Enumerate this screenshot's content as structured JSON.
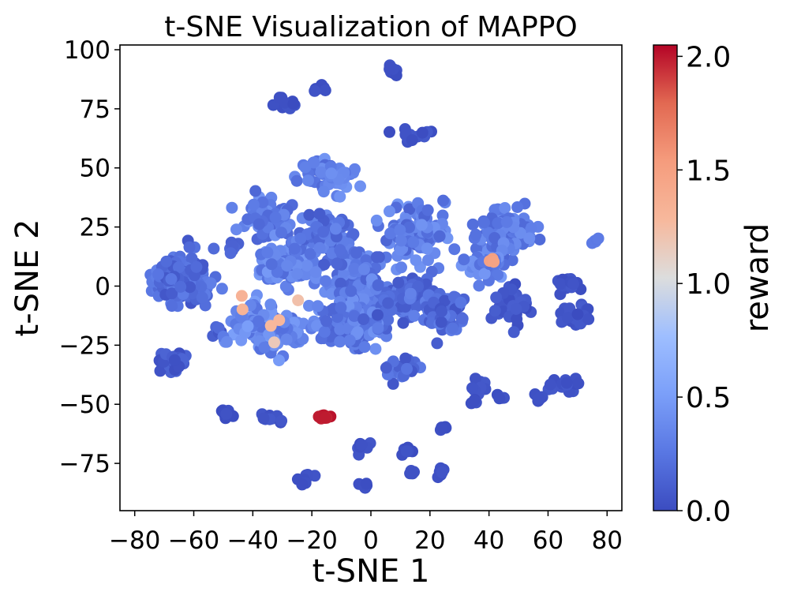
{
  "chart_data": {
    "type": "scatter",
    "title": "t-SNE Visualization of MAPPO",
    "xlabel": "t-SNE 1",
    "ylabel": "t-SNE 2",
    "xlim": [
      -85,
      85
    ],
    "ylim": [
      -95,
      102
    ],
    "xticks": [
      -80,
      -60,
      -40,
      -20,
      0,
      20,
      40,
      60,
      80
    ],
    "xtick_labels": [
      "−80",
      "−60",
      "−40",
      "−20",
      "0",
      "20",
      "40",
      "60",
      "80"
    ],
    "yticks": [
      -75,
      -50,
      -25,
      0,
      25,
      50,
      75,
      100
    ],
    "ytick_labels": [
      "−75",
      "−50",
      "−25",
      "0",
      "25",
      "50",
      "75",
      "100"
    ],
    "colorbar": {
      "label": "reward",
      "colormap": "coolwarm",
      "range": [
        0.0,
        2.05
      ],
      "ticks": [
        0.0,
        0.5,
        1.0,
        1.5,
        2.0
      ],
      "tick_labels": [
        "0.0",
        "0.5",
        "1.0",
        "1.5",
        "2.0"
      ]
    },
    "grid": false,
    "clusters": [
      {
        "center": [
          -64,
          3
        ],
        "spread": [
          7,
          8
        ],
        "count": 150,
        "reward": [
          0.05,
          0.32
        ]
      },
      {
        "center": [
          -67,
          -31
        ],
        "spread": [
          4,
          3
        ],
        "count": 35,
        "reward": [
          0.0,
          0.15
        ]
      },
      {
        "center": [
          -52,
          -20
        ],
        "spread": [
          2,
          2
        ],
        "count": 6,
        "reward": [
          0.05,
          0.2
        ]
      },
      {
        "center": [
          -48,
          17
        ],
        "spread": [
          3,
          2
        ],
        "count": 8,
        "reward": [
          0.1,
          0.3
        ]
      },
      {
        "center": [
          -49,
          -54
        ],
        "spread": [
          1.5,
          1.2
        ],
        "count": 12,
        "reward": [
          0.0,
          0.05
        ]
      },
      {
        "center": [
          -34,
          -56
        ],
        "spread": [
          2,
          1.5
        ],
        "count": 10,
        "reward": [
          0.0,
          0.08
        ]
      },
      {
        "center": [
          -16,
          -55
        ],
        "spread": [
          1.3,
          1.0
        ],
        "count": 12,
        "reward": [
          1.95,
          2.02
        ]
      },
      {
        "center": [
          -22,
          -82
        ],
        "spread": [
          2.5,
          1.2
        ],
        "count": 12,
        "reward": [
          0.0,
          0.05
        ]
      },
      {
        "center": [
          -27,
          78
        ],
        "spread": [
          3,
          3
        ],
        "count": 14,
        "reward": [
          0.0,
          0.08
        ]
      },
      {
        "center": [
          -17,
          84
        ],
        "spread": [
          1.5,
          1
        ],
        "count": 8,
        "reward": [
          0.0,
          0.05
        ]
      },
      {
        "center": [
          8,
          91
        ],
        "spread": [
          1.5,
          2
        ],
        "count": 10,
        "reward": [
          0.0,
          0.05
        ]
      },
      {
        "center": [
          15,
          64
        ],
        "spread": [
          4,
          2
        ],
        "count": 14,
        "reward": [
          0.0,
          0.08
        ]
      },
      {
        "center": [
          -35,
          28
        ],
        "spread": [
          6,
          5
        ],
        "count": 80,
        "reward": [
          0.15,
          0.45
        ]
      },
      {
        "center": [
          -28,
          10
        ],
        "spread": [
          8,
          6
        ],
        "count": 120,
        "reward": [
          0.18,
          0.48
        ]
      },
      {
        "center": [
          -35,
          -18
        ],
        "spread": [
          8,
          7
        ],
        "count": 130,
        "reward": [
          0.2,
          0.52
        ]
      },
      {
        "center": [
          -15,
          47
        ],
        "spread": [
          7,
          5
        ],
        "count": 70,
        "reward": [
          0.15,
          0.45
        ]
      },
      {
        "center": [
          -15,
          22
        ],
        "spread": [
          7,
          7
        ],
        "count": 90,
        "reward": [
          0.08,
          0.38
        ]
      },
      {
        "center": [
          -5,
          5
        ],
        "spread": [
          7,
          8
        ],
        "count": 110,
        "reward": [
          0.1,
          0.42
        ]
      },
      {
        "center": [
          -5,
          -15
        ],
        "spread": [
          9,
          8
        ],
        "count": 140,
        "reward": [
          0.12,
          0.45
        ]
      },
      {
        "center": [
          15,
          22
        ],
        "spread": [
          8,
          8
        ],
        "count": 120,
        "reward": [
          0.12,
          0.45
        ]
      },
      {
        "center": [
          12,
          -5
        ],
        "spread": [
          7,
          7
        ],
        "count": 80,
        "reward": [
          0.05,
          0.35
        ]
      },
      {
        "center": [
          10,
          -35
        ],
        "spread": [
          4,
          3
        ],
        "count": 30,
        "reward": [
          0.05,
          0.3
        ]
      },
      {
        "center": [
          25,
          -12
        ],
        "spread": [
          6,
          6
        ],
        "count": 50,
        "reward": [
          0.05,
          0.3
        ]
      },
      {
        "center": [
          45,
          23
        ],
        "spread": [
          7,
          7
        ],
        "count": 90,
        "reward": [
          0.15,
          0.42
        ]
      },
      {
        "center": [
          38,
          8
        ],
        "spread": [
          5,
          4
        ],
        "count": 35,
        "reward": [
          0.2,
          0.48
        ]
      },
      {
        "center": [
          48,
          -8
        ],
        "spread": [
          4,
          7
        ],
        "count": 45,
        "reward": [
          0.0,
          0.12
        ]
      },
      {
        "center": [
          66,
          1
        ],
        "spread": [
          3,
          3
        ],
        "count": 25,
        "reward": [
          0.0,
          0.1
        ]
      },
      {
        "center": [
          70,
          -13
        ],
        "spread": [
          4,
          3
        ],
        "count": 25,
        "reward": [
          0.0,
          0.1
        ]
      },
      {
        "center": [
          76,
          19
        ],
        "spread": [
          0.8,
          0.6
        ],
        "count": 5,
        "reward": [
          0.25,
          0.4
        ]
      },
      {
        "center": [
          37,
          -43
        ],
        "spread": [
          2,
          2
        ],
        "count": 10,
        "reward": [
          0.0,
          0.08
        ]
      },
      {
        "center": [
          45,
          -48
        ],
        "spread": [
          1.5,
          1
        ],
        "count": 4,
        "reward": [
          0.0,
          0.05
        ]
      },
      {
        "center": [
          35,
          -49
        ],
        "spread": [
          1,
          1
        ],
        "count": 4,
        "reward": [
          0.0,
          0.05
        ]
      },
      {
        "center": [
          66,
          -42
        ],
        "spread": [
          5,
          2.5
        ],
        "count": 16,
        "reward": [
          0.0,
          0.08
        ]
      },
      {
        "center": [
          57,
          -47
        ],
        "spread": [
          1.5,
          1
        ],
        "count": 6,
        "reward": [
          0.0,
          0.05
        ]
      },
      {
        "center": [
          24,
          -60
        ],
        "spread": [
          1.5,
          1.3
        ],
        "count": 6,
        "reward": [
          0.0,
          0.05
        ]
      },
      {
        "center": [
          24,
          -79
        ],
        "spread": [
          1.5,
          1.2
        ],
        "count": 6,
        "reward": [
          0.0,
          0.05
        ]
      },
      {
        "center": [
          12,
          -70
        ],
        "spread": [
          1.5,
          1.2
        ],
        "count": 6,
        "reward": [
          0.0,
          0.05
        ]
      },
      {
        "center": [
          -3,
          -67
        ],
        "spread": [
          2,
          2.5
        ],
        "count": 10,
        "reward": [
          0.0,
          0.08
        ]
      },
      {
        "center": [
          -2,
          -84
        ],
        "spread": [
          1.5,
          1
        ],
        "count": 6,
        "reward": [
          0.0,
          0.05
        ]
      },
      {
        "center": [
          14,
          -79
        ],
        "spread": [
          1.5,
          1
        ],
        "count": 4,
        "reward": [
          0.0,
          0.05
        ]
      },
      {
        "center": [
          41,
          11
        ],
        "spread": [
          1,
          1
        ],
        "count": 3,
        "reward": [
          1.35,
          1.55
        ]
      },
      {
        "center": [
          -36,
          -12
        ],
        "spread": [
          10,
          8
        ],
        "count": 6,
        "reward": [
          1.15,
          1.35
        ]
      }
    ]
  }
}
